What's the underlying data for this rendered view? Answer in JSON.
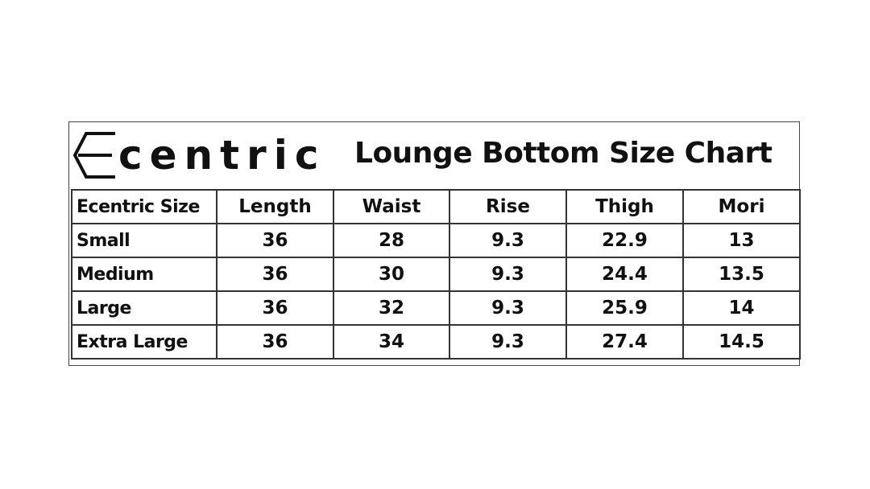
{
  "brand": {
    "name": "centric",
    "logo_letter": "E"
  },
  "title": "Lounge Bottom Size Chart",
  "table": {
    "headers": [
      "Ecentric Size",
      "Length",
      "Waist",
      "Rise",
      "Thigh",
      "Mori"
    ],
    "rows": [
      [
        "Small",
        "36",
        "28",
        "9.3",
        "22.9",
        "13"
      ],
      [
        "Medium",
        "36",
        "30",
        "9.3",
        "24.4",
        "13.5"
      ],
      [
        "Large",
        "36",
        "32",
        "9.3",
        "25.9",
        "14"
      ],
      [
        "Extra Large",
        "36",
        "34",
        "9.3",
        "27.4",
        "14.5"
      ]
    ]
  }
}
